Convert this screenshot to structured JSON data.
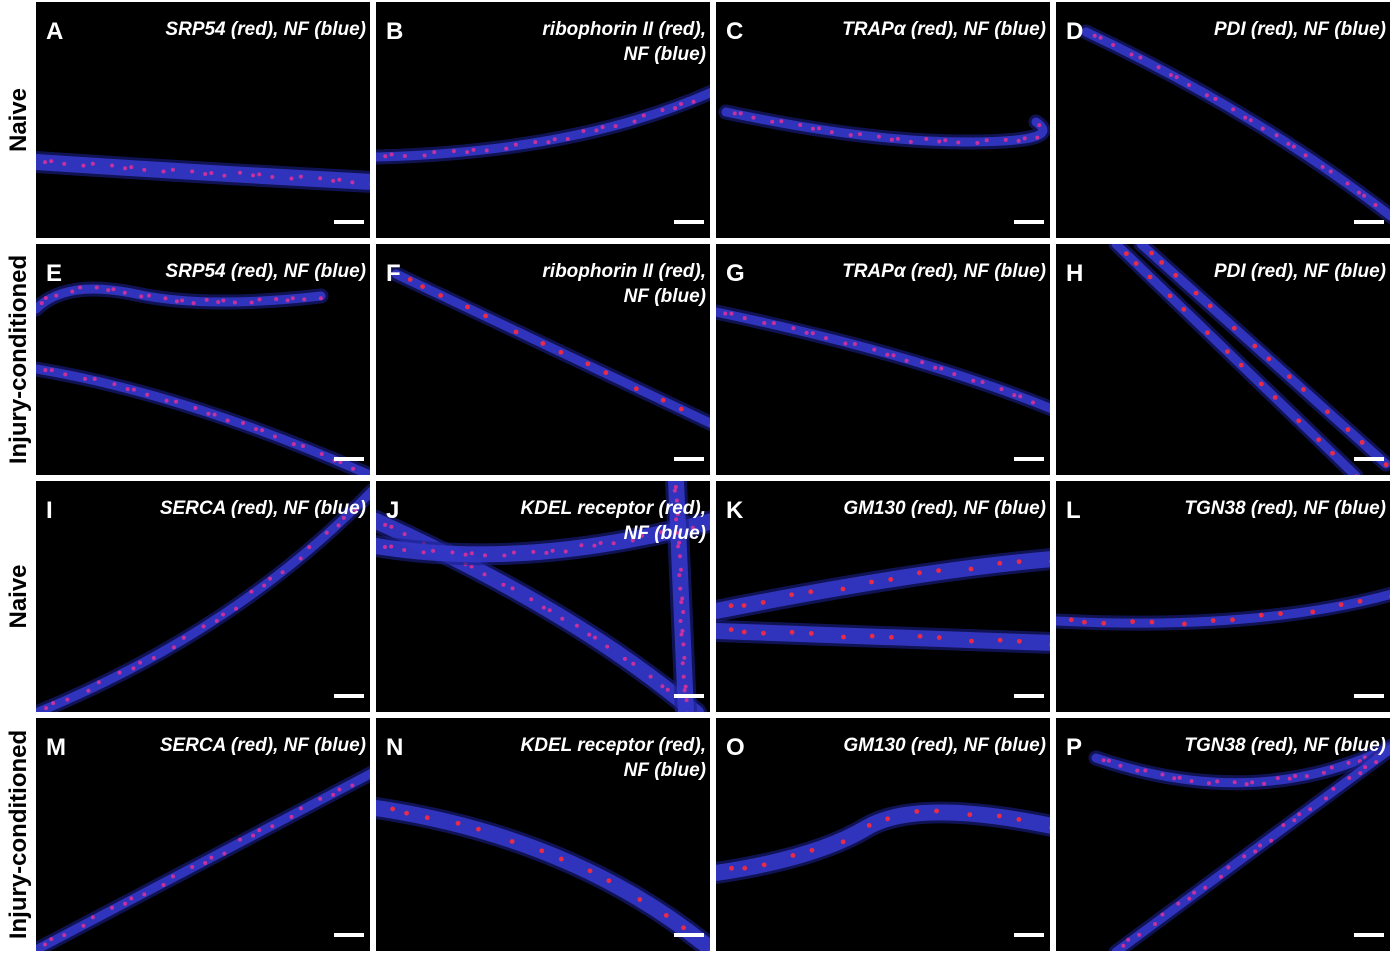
{
  "row_labels": [
    "Naive",
    "Injury-conditioned",
    "Naive",
    "Injury-conditioned"
  ],
  "panels": [
    {
      "letter": "A",
      "caption_lines": [
        "SRP54 (red), NF (blue)"
      ]
    },
    {
      "letter": "B",
      "caption_lines": [
        "ribophorin II (red),",
        "NF (blue)"
      ]
    },
    {
      "letter": "C",
      "caption_lines": [
        "TRAPα (red), NF (blue)"
      ]
    },
    {
      "letter": "D",
      "caption_lines": [
        "PDI (red), NF (blue)"
      ]
    },
    {
      "letter": "E",
      "caption_lines": [
        "SRP54 (red), NF (blue)"
      ]
    },
    {
      "letter": "F",
      "caption_lines": [
        "ribophorin II (red),",
        "NF (blue)"
      ]
    },
    {
      "letter": "G",
      "caption_lines": [
        "TRAPα (red), NF (blue)"
      ]
    },
    {
      "letter": "H",
      "caption_lines": [
        "PDI (red), NF (blue)"
      ]
    },
    {
      "letter": "I",
      "caption_lines": [
        "SERCA (red), NF (blue)"
      ]
    },
    {
      "letter": "J",
      "caption_lines": [
        "KDEL receptor (red),",
        "NF (blue)"
      ]
    },
    {
      "letter": "K",
      "caption_lines": [
        "GM130 (red), NF (blue)"
      ]
    },
    {
      "letter": "L",
      "caption_lines": [
        "TGN38 (red), NF (blue)"
      ]
    },
    {
      "letter": "M",
      "caption_lines": [
        "SERCA (red), NF (blue)"
      ]
    },
    {
      "letter": "N",
      "caption_lines": [
        "KDEL receptor (red),",
        "NF (blue)"
      ]
    },
    {
      "letter": "O",
      "caption_lines": [
        "GM130 (red), NF (blue)"
      ]
    },
    {
      "letter": "P",
      "caption_lines": [
        "TGN38 (red), NF (blue)"
      ]
    }
  ]
}
